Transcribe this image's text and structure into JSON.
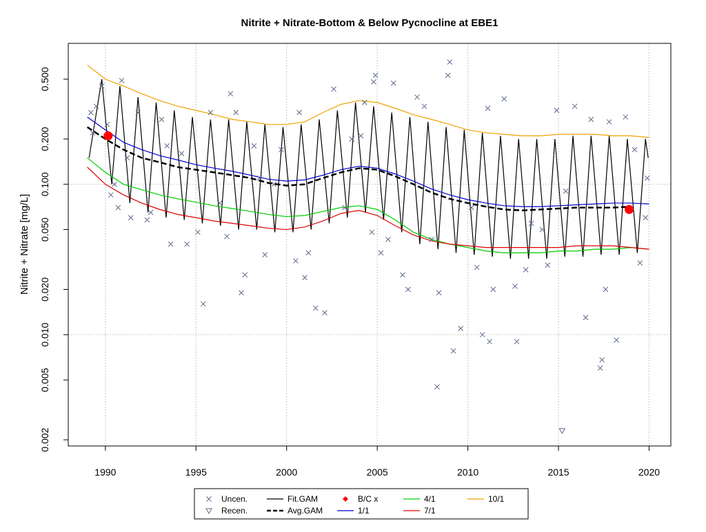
{
  "chart_data": {
    "type": "scatter",
    "title": "Nitrite + Nitrate-Bottom & Below Pycnocline at EBE1",
    "ylabel": "Nitrite + Nitrate [mg/L]",
    "xlim": [
      1987.95,
      2021.2
    ],
    "ylim": [
      0.00182,
      0.865
    ],
    "log_y": true,
    "grid": true,
    "legend_position": "bottom",
    "xticks": [
      1990,
      1995,
      2000,
      2005,
      2010,
      2015,
      2020
    ],
    "yticks": [
      {
        "value": 0.002,
        "label": "0.002"
      },
      {
        "value": 0.005,
        "label": "0.005"
      },
      {
        "value": 0.01,
        "label": "0.010"
      },
      {
        "value": 0.02,
        "label": "0.020"
      },
      {
        "value": 0.05,
        "label": "0.050"
      },
      {
        "value": 0.1,
        "label": "0.100"
      },
      {
        "value": 0.2,
        "label": "0.200"
      },
      {
        "value": 0.5,
        "label": "0.500"
      }
    ],
    "series": [
      {
        "name": "Uncen.",
        "type": "scatter",
        "marker": "x",
        "color": "#5a6a8a",
        "x": [
          1989.2,
          1989.3,
          1989.5,
          1989.8,
          1990.1,
          1990.3,
          1990.5,
          1990.7,
          1990.9,
          1991.2,
          1991.4,
          1991.8,
          1992.3,
          1992.5,
          1993.1,
          1993.4,
          1993.6,
          1994.2,
          1994.5,
          1995.1,
          1995.4,
          1995.8,
          1996.3,
          1996.7,
          1996.9,
          1997.2,
          1997.5,
          1997.7,
          1998.2,
          1998.5,
          1998.8,
          1999.3,
          1999.7,
          2000.5,
          2000.7,
          2001.0,
          2001.2,
          2001.6,
          2002.1,
          2002.6,
          2003.2,
          2003.6,
          2004.1,
          2004.3,
          2004.7,
          2004.8,
          2004.9,
          2005.2,
          2005.6,
          2005.9,
          2006.4,
          2006.7,
          2007.2,
          2007.6,
          2008.0,
          2008.3,
          2008.4,
          2008.9,
          2009.0,
          2009.2,
          2009.6,
          2010.2,
          2010.5,
          2010.8,
          2011.1,
          2011.2,
          2011.4,
          2012.0,
          2012.6,
          2012.7,
          2013.2,
          2013.5,
          2014.1,
          2014.4,
          2014.9,
          2015.4,
          2015.9,
          2016.5,
          2016.8,
          2017.3,
          2017.4,
          2017.6,
          2017.8,
          2018.2,
          2018.7,
          2019.2,
          2019.5,
          2019.8,
          2019.9
        ],
        "values": [
          0.3,
          0.22,
          0.33,
          0.45,
          0.25,
          0.085,
          0.1,
          0.07,
          0.49,
          0.15,
          0.06,
          0.3,
          0.058,
          0.065,
          0.27,
          0.18,
          0.04,
          0.16,
          0.04,
          0.048,
          0.016,
          0.3,
          0.075,
          0.045,
          0.4,
          0.3,
          0.019,
          0.025,
          0.18,
          0.11,
          0.034,
          0.1,
          0.17,
          0.031,
          0.3,
          0.024,
          0.035,
          0.015,
          0.014,
          0.43,
          0.07,
          0.2,
          0.21,
          0.35,
          0.048,
          0.48,
          0.53,
          0.035,
          0.043,
          0.47,
          0.025,
          0.02,
          0.38,
          0.33,
          0.043,
          0.0045,
          0.019,
          0.53,
          0.65,
          0.0078,
          0.011,
          0.07,
          0.028,
          0.01,
          0.32,
          0.009,
          0.02,
          0.37,
          0.021,
          0.009,
          0.027,
          0.055,
          0.05,
          0.029,
          0.31,
          0.09,
          0.33,
          0.013,
          0.27,
          0.006,
          0.0068,
          0.02,
          0.26,
          0.0092,
          0.28,
          0.17,
          0.03,
          0.06,
          0.11
        ]
      },
      {
        "name": "Recen.",
        "type": "scatter",
        "marker": "triangle",
        "color": "#5a6a8a",
        "x": [
          2015.2
        ],
        "values": [
          0.0023
        ]
      },
      {
        "name": "Fit.GAM",
        "type": "line",
        "color": "#000000",
        "x": [
          1989.1,
          1989.8,
          1990.35,
          1990.8,
          1991.35,
          1991.8,
          1992.35,
          1992.8,
          1993.35,
          1993.8,
          1994.35,
          1994.8,
          1995.35,
          1995.8,
          1996.35,
          1996.8,
          1997.35,
          1997.8,
          1998.35,
          1998.8,
          1999.35,
          1999.8,
          2000.35,
          2000.8,
          2001.35,
          2001.8,
          2002.35,
          2002.8,
          2003.35,
          2003.8,
          2004.35,
          2004.8,
          2005.35,
          2005.8,
          2006.35,
          2006.8,
          2007.35,
          2007.8,
          2008.35,
          2008.8,
          2009.35,
          2009.8,
          2010.35,
          2010.8,
          2011.35,
          2011.8,
          2012.35,
          2012.8,
          2013.35,
          2013.8,
          2014.35,
          2014.8,
          2015.35,
          2015.8,
          2016.35,
          2016.8,
          2017.35,
          2017.8,
          2018.35,
          2018.8,
          2019.35,
          2019.8,
          2019.95
        ],
        "values": [
          0.15,
          0.5,
          0.1,
          0.45,
          0.075,
          0.38,
          0.065,
          0.35,
          0.06,
          0.31,
          0.058,
          0.28,
          0.055,
          0.27,
          0.053,
          0.27,
          0.05,
          0.26,
          0.05,
          0.25,
          0.048,
          0.24,
          0.048,
          0.25,
          0.05,
          0.27,
          0.055,
          0.31,
          0.06,
          0.35,
          0.065,
          0.33,
          0.058,
          0.3,
          0.048,
          0.28,
          0.04,
          0.26,
          0.037,
          0.24,
          0.035,
          0.23,
          0.034,
          0.22,
          0.033,
          0.21,
          0.032,
          0.2,
          0.032,
          0.2,
          0.032,
          0.2,
          0.033,
          0.21,
          0.033,
          0.21,
          0.034,
          0.21,
          0.034,
          0.2,
          0.035,
          0.2,
          0.15
        ]
      },
      {
        "name": "Avg.GAM",
        "type": "line",
        "dash": true,
        "color": "#000000",
        "x": [
          1989,
          1990,
          1991,
          1992,
          1993,
          1994,
          1995,
          1996,
          1997,
          1998,
          1999,
          2000,
          2001,
          2002,
          2003,
          2004,
          2005,
          2006,
          2007,
          2008,
          2009,
          2010,
          2011,
          2012,
          2013,
          2014,
          2015,
          2016,
          2017,
          2018,
          2019,
          2020
        ],
        "values": [
          0.24,
          0.2,
          0.17,
          0.15,
          0.14,
          0.13,
          0.125,
          0.12,
          0.115,
          0.11,
          0.102,
          0.098,
          0.1,
          0.11,
          0.12,
          0.128,
          0.125,
          0.113,
          0.1,
          0.088,
          0.08,
          0.075,
          0.071,
          0.068,
          0.067,
          0.068,
          0.069,
          0.07,
          0.07,
          0.07,
          0.071,
          null
        ]
      },
      {
        "name": "B/C x",
        "type": "scatter",
        "marker": "circle",
        "color": "#ff0000",
        "x": [
          1990.15,
          2018.9
        ],
        "values": [
          0.21,
          0.068
        ]
      },
      {
        "name": "1/1",
        "type": "line",
        "color": "#0000cc",
        "x": [
          1989,
          1990,
          1991,
          1992,
          1993,
          1994,
          1995,
          1996,
          1997,
          1998,
          1999,
          2000,
          2001,
          2002,
          2003,
          2004,
          2005,
          2006,
          2007,
          2008,
          2009,
          2010,
          2011,
          2012,
          2013,
          2014,
          2015,
          2016,
          2017,
          2018,
          2019,
          2020
        ],
        "values": [
          0.28,
          0.23,
          0.19,
          0.17,
          0.155,
          0.145,
          0.135,
          0.128,
          0.122,
          0.115,
          0.108,
          0.105,
          0.107,
          0.115,
          0.125,
          0.132,
          0.128,
          0.117,
          0.105,
          0.093,
          0.085,
          0.079,
          0.075,
          0.072,
          0.071,
          0.071,
          0.072,
          0.073,
          0.074,
          0.075,
          0.075,
          0.074
        ]
      },
      {
        "name": "4/1",
        "type": "line",
        "color": "#00cc00",
        "x": [
          1989,
          1990,
          1991,
          1992,
          1993,
          1994,
          1995,
          1996,
          1997,
          1998,
          1999,
          2000,
          2001,
          2002,
          2003,
          2004,
          2005,
          2006,
          2007,
          2008,
          2009,
          2010,
          2011,
          2012,
          2013,
          2014,
          2015,
          2016,
          2017,
          2018,
          2019,
          2020
        ],
        "values": [
          0.15,
          0.12,
          0.1,
          0.092,
          0.085,
          0.08,
          0.076,
          0.072,
          0.069,
          0.066,
          0.063,
          0.061,
          0.062,
          0.066,
          0.07,
          0.072,
          0.068,
          0.058,
          0.048,
          0.043,
          0.04,
          0.038,
          0.036,
          0.035,
          0.035,
          0.035,
          0.036,
          0.036,
          0.037,
          0.037,
          0.038,
          0.037
        ]
      },
      {
        "name": "7/1",
        "type": "line",
        "color": "#dd0000",
        "x": [
          1989,
          1990,
          1991,
          1992,
          1993,
          1994,
          1995,
          1996,
          1997,
          1998,
          1999,
          2000,
          2001,
          2002,
          2003,
          2004,
          2005,
          2006,
          2007,
          2008,
          2009,
          2010,
          2011,
          2012,
          2013,
          2014,
          2015,
          2016,
          2017,
          2018,
          2019,
          2020
        ],
        "values": [
          0.13,
          0.1,
          0.085,
          0.075,
          0.068,
          0.063,
          0.06,
          0.057,
          0.055,
          0.053,
          0.051,
          0.05,
          0.052,
          0.057,
          0.064,
          0.067,
          0.062,
          0.053,
          0.046,
          0.042,
          0.04,
          0.039,
          0.038,
          0.038,
          0.038,
          0.038,
          0.038,
          0.039,
          0.039,
          0.039,
          0.038,
          0.037
        ]
      },
      {
        "name": "10/1",
        "type": "line",
        "color": "#f0a000",
        "x": [
          1989,
          1990,
          1991,
          1992,
          1993,
          1994,
          1995,
          1996,
          1997,
          1998,
          1999,
          2000,
          2001,
          2002,
          2003,
          2004,
          2005,
          2006,
          2007,
          2008,
          2009,
          2010,
          2011,
          2012,
          2013,
          2014,
          2015,
          2016,
          2017,
          2018,
          2019,
          2020
        ],
        "values": [
          0.62,
          0.5,
          0.45,
          0.4,
          0.36,
          0.33,
          0.31,
          0.29,
          0.27,
          0.26,
          0.25,
          0.25,
          0.26,
          0.3,
          0.34,
          0.36,
          0.35,
          0.32,
          0.29,
          0.27,
          0.25,
          0.23,
          0.22,
          0.215,
          0.21,
          0.21,
          0.215,
          0.215,
          0.215,
          0.21,
          0.21,
          0.205
        ]
      }
    ]
  }
}
